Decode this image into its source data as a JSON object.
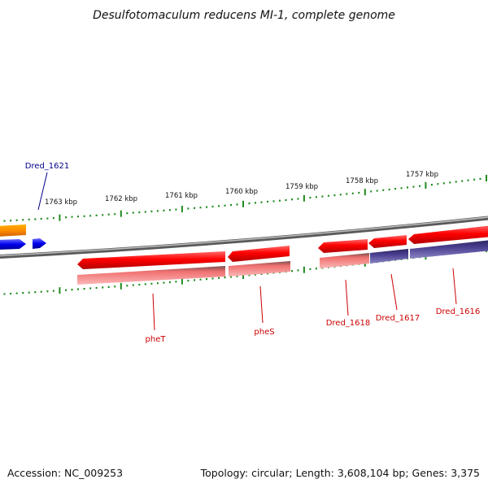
{
  "title": "Desulfotomaculum reducens MI-1, complete genome",
  "footer": {
    "accession": "Accession: NC_009253",
    "summary": "Topology: circular; Length: 3,608,104 bp; Genes: 3,375"
  },
  "colors": {
    "backbone": "#8a8a8a",
    "tick": "#1f8a1f",
    "gene_forward": "#ff0000",
    "gene_reverse": "#ff0000",
    "cds_feature": "#f07878",
    "cds_feature_alt": "#4a4090",
    "blue_gene": "#0000ee",
    "orange_gene": "#ff8c00",
    "label_red": "#cc0000",
    "label_blue": "#00008b"
  },
  "tick_labels": [
    {
      "id": "tick-1763",
      "text": "1763 kbp"
    },
    {
      "id": "tick-1762",
      "text": "1762 kbp"
    },
    {
      "id": "tick-1761",
      "text": "1761 kbp"
    },
    {
      "id": "tick-1760",
      "text": "1760 kbp"
    },
    {
      "id": "tick-1759",
      "text": "1759 kbp"
    },
    {
      "id": "tick-1758",
      "text": "1758 kbp"
    },
    {
      "id": "tick-1757",
      "text": "1757 kbp"
    }
  ],
  "gene_labels": [
    {
      "id": "label-dred-1621",
      "text": "Dred_1621",
      "color": "#00008b"
    },
    {
      "id": "label-phet",
      "text": "pheT",
      "color": "#cc0000"
    },
    {
      "id": "label-phes",
      "text": "pheS",
      "color": "#cc0000"
    },
    {
      "id": "label-dred-1618",
      "text": "Dred_1618",
      "color": "#cc0000"
    },
    {
      "id": "label-dred-1617",
      "text": "Dred_1617",
      "color": "#cc0000"
    },
    {
      "id": "label-dred-1616",
      "text": "Dred_1616",
      "color": "#cc0000"
    }
  ]
}
